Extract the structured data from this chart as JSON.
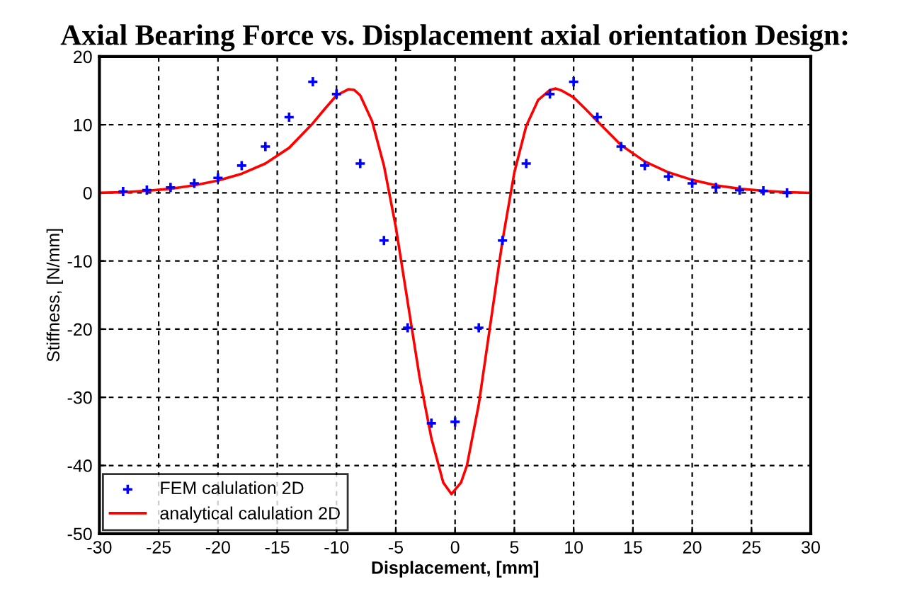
{
  "chart_data": {
    "type": "scatter",
    "title": "Axial Bearing Force vs. Displacement axial orientation Design:",
    "xlabel": "Displacement, [mm]",
    "ylabel": "Stiffness, [N/mm]",
    "xlim": [
      -30,
      30
    ],
    "ylim": [
      -50,
      20
    ],
    "xticks": [
      -30,
      -25,
      -20,
      -15,
      -10,
      -5,
      0,
      5,
      10,
      15,
      20,
      25,
      30
    ],
    "yticks": [
      -50,
      -40,
      -30,
      -20,
      -10,
      0,
      10,
      20
    ],
    "grid": true,
    "legend": "bottom left",
    "series": [
      {
        "name": "FEM calulation 2D",
        "marker": "cross",
        "color": "#0000ff",
        "x": [
          -28,
          -26,
          -24,
          -22,
          -20,
          -18,
          -16,
          -14,
          -12,
          -10,
          -8,
          -6,
          -4,
          -2,
          0,
          2,
          4,
          6,
          8,
          10,
          12,
          14,
          16,
          18,
          20,
          22,
          24,
          26,
          28
        ],
        "values": [
          0.2,
          0.4,
          0.8,
          1.4,
          2.2,
          4.0,
          6.8,
          11.1,
          16.3,
          14.5,
          4.3,
          -7.0,
          -19.8,
          -33.8,
          -33.6,
          -19.8,
          -7.0,
          4.3,
          14.5,
          16.3,
          11.1,
          6.8,
          4.0,
          2.4,
          1.4,
          0.8,
          0.4,
          0.3,
          0.0
        ]
      },
      {
        "name": "analytical calulation 2D",
        "type": "line",
        "marker": "none",
        "line_style": "solid",
        "color": "#ff0000",
        "x": [
          -30,
          -28,
          -26,
          -24,
          -22,
          -20,
          -18,
          -16,
          -14,
          -12,
          -11,
          -10,
          -9,
          -8.5,
          -8,
          -7,
          -6,
          -5,
          -4,
          -3,
          -2,
          -1,
          -0.3,
          0.5,
          1,
          2,
          3,
          4,
          5,
          6,
          7,
          8,
          8.5,
          9,
          10,
          11,
          12,
          14,
          16,
          18,
          20,
          22,
          24,
          26,
          28,
          30
        ],
        "values": [
          0,
          0.1,
          0.3,
          0.6,
          1.1,
          1.8,
          2.8,
          4.3,
          6.6,
          10.2,
          12.3,
          14.3,
          15.2,
          15.1,
          14.3,
          10.5,
          4.0,
          -5.0,
          -16.0,
          -27.0,
          -36.0,
          -42.5,
          -44.2,
          -42.5,
          -40.0,
          -31.0,
          -19.0,
          -7.0,
          3.0,
          9.8,
          13.6,
          15.1,
          15.3,
          15.0,
          14.0,
          12.3,
          10.5,
          7.0,
          4.6,
          3.0,
          1.9,
          1.1,
          0.6,
          0.3,
          0.1,
          0
        ]
      }
    ]
  }
}
